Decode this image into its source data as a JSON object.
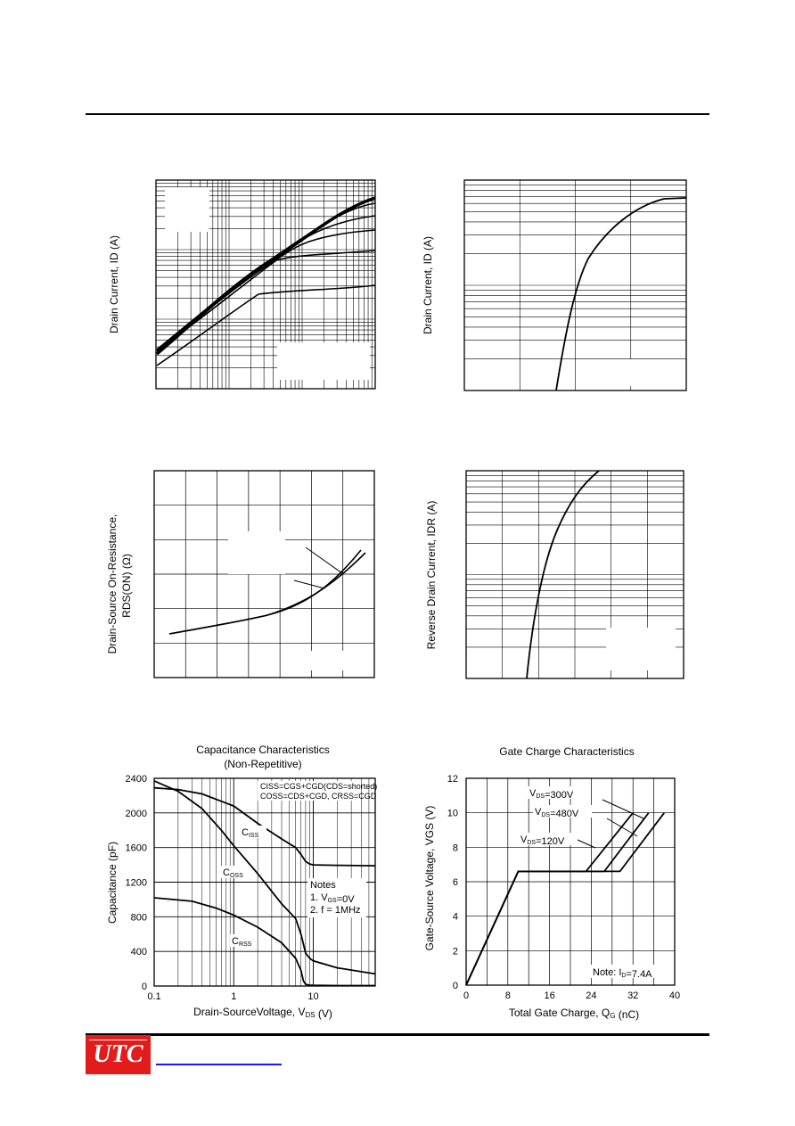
{
  "header": {},
  "footer": {
    "logo_text": "UTC"
  },
  "charts": {
    "c1": {
      "ylabel": "Drain Current, ID (A)"
    },
    "c2": {
      "ylabel": "Drain Current, ID (A)"
    },
    "c3": {
      "ylabel_line1": "Drain-Source On-Resistance,",
      "ylabel_line2": "RDS(ON) (Ω)"
    },
    "c4": {
      "ylabel": "Reverse Drain Current, IDR (A)"
    }
  },
  "chart_data": [
    {
      "id": "capacitance",
      "type": "line",
      "title": "Capacitance Characteristics",
      "subtitle": "(Non-Repetitive)",
      "xlabel": "Drain-SourceVoltage, VDS (V)",
      "ylabel": "Capacitance (pF)",
      "x_scale": "log",
      "xlim": [
        0.1,
        60
      ],
      "ylim": [
        0,
        2400
      ],
      "x_ticks": [
        "0.1",
        "1",
        "10"
      ],
      "y_ticks": [
        "0",
        "400",
        "800",
        "1200",
        "1600",
        "2000",
        "2400"
      ],
      "legend_lines": [
        "CISS=CGS+CGD(CDS=shorted)",
        "COSS=CDS+CGD",
        "CRSS=CGD"
      ],
      "notes": [
        "Notes",
        "1. VGS=0V",
        "2. f = 1MHz"
      ],
      "series": [
        {
          "name": "CISS",
          "x": [
            0.1,
            0.2,
            0.4,
            1,
            2,
            4,
            6,
            7,
            8,
            9,
            10,
            20,
            60
          ],
          "y": [
            2290,
            2270,
            2220,
            2080,
            1880,
            1700,
            1600,
            1520,
            1440,
            1410,
            1400,
            1395,
            1390
          ]
        },
        {
          "name": "COSS",
          "x": [
            0.1,
            0.2,
            0.4,
            0.7,
            1,
            2,
            4,
            6,
            7,
            8,
            9,
            10,
            20,
            60
          ],
          "y": [
            2370,
            2250,
            2050,
            1800,
            1620,
            1300,
            950,
            780,
            600,
            380,
            320,
            290,
            210,
            140
          ]
        },
        {
          "name": "CRSS",
          "x": [
            0.1,
            0.3,
            0.6,
            1,
            2,
            4,
            6,
            7,
            7.5,
            8,
            9,
            10,
            20,
            60
          ],
          "y": [
            1020,
            980,
            900,
            820,
            680,
            500,
            320,
            180,
            60,
            20,
            10,
            8,
            5,
            5
          ]
        }
      ]
    },
    {
      "id": "gate-charge",
      "type": "line",
      "title": "Gate Charge Characteristics",
      "xlabel": "Total Gate Charge, QG (nC)",
      "ylabel": "Gate-Source Voltage, VGS (V)",
      "xlim": [
        0,
        40
      ],
      "ylim": [
        0,
        12
      ],
      "x_ticks": [
        "0",
        "8",
        "16",
        "24",
        "32",
        "40"
      ],
      "y_ticks": [
        "0",
        "2",
        "4",
        "6",
        "8",
        "10",
        "12"
      ],
      "note": "Note: ID=7.4A",
      "series": [
        {
          "name": "VDS=120V",
          "x": [
            0,
            10,
            23,
            32
          ],
          "y": [
            0,
            6.6,
            6.6,
            10
          ]
        },
        {
          "name": "VDS=300V",
          "x": [
            0,
            10,
            26.5,
            35
          ],
          "y": [
            0,
            6.6,
            6.6,
            10
          ]
        },
        {
          "name": "VDS=480V",
          "x": [
            0,
            10,
            29.5,
            38
          ],
          "y": [
            0,
            6.6,
            6.6,
            10
          ]
        }
      ]
    }
  ]
}
